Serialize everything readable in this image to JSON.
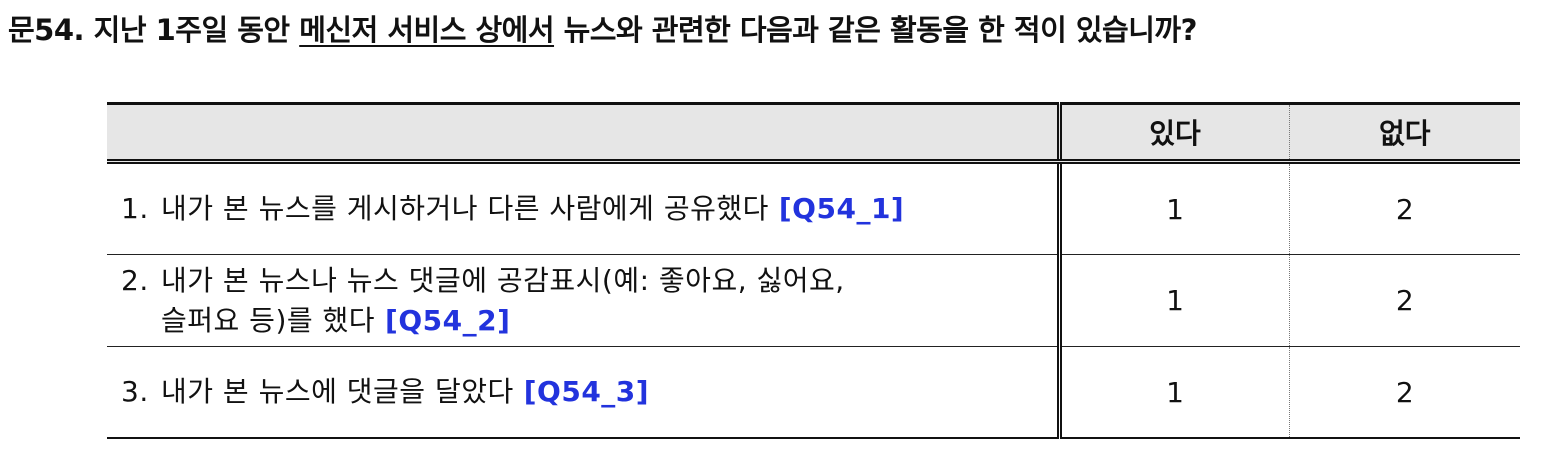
{
  "question": {
    "prefix": "문54. 지난 1주일 동안 ",
    "underlined": "메신저 서비스 상에서",
    "suffix": " 뉴스와 관련한 다음과 같은 활동을 한 적이 있습니까?"
  },
  "table": {
    "headers": {
      "item": "",
      "yes": "있다",
      "no": "없다"
    },
    "rows": [
      {
        "number": "1.",
        "line1": "내가 본 뉴스를 게시하거나 다른 사람에게 공유했다",
        "line2": "",
        "code": "[Q54_1]",
        "yes": "1",
        "no": "2"
      },
      {
        "number": "2.",
        "line1": "내가 본 뉴스나 뉴스 댓글에 공감표시(예: 좋아요, 싫어요,",
        "line2": "슬퍼요 등)를 했다",
        "code": "[Q54_2]",
        "yes": "1",
        "no": "2"
      },
      {
        "number": "3.",
        "line1": "내가 본 뉴스에 댓글을 달았다",
        "line2": "",
        "code": "[Q54_3]",
        "yes": "1",
        "no": "2"
      }
    ]
  },
  "colors": {
    "code_text": "#2233dd",
    "header_background": "#e6e6e6"
  }
}
